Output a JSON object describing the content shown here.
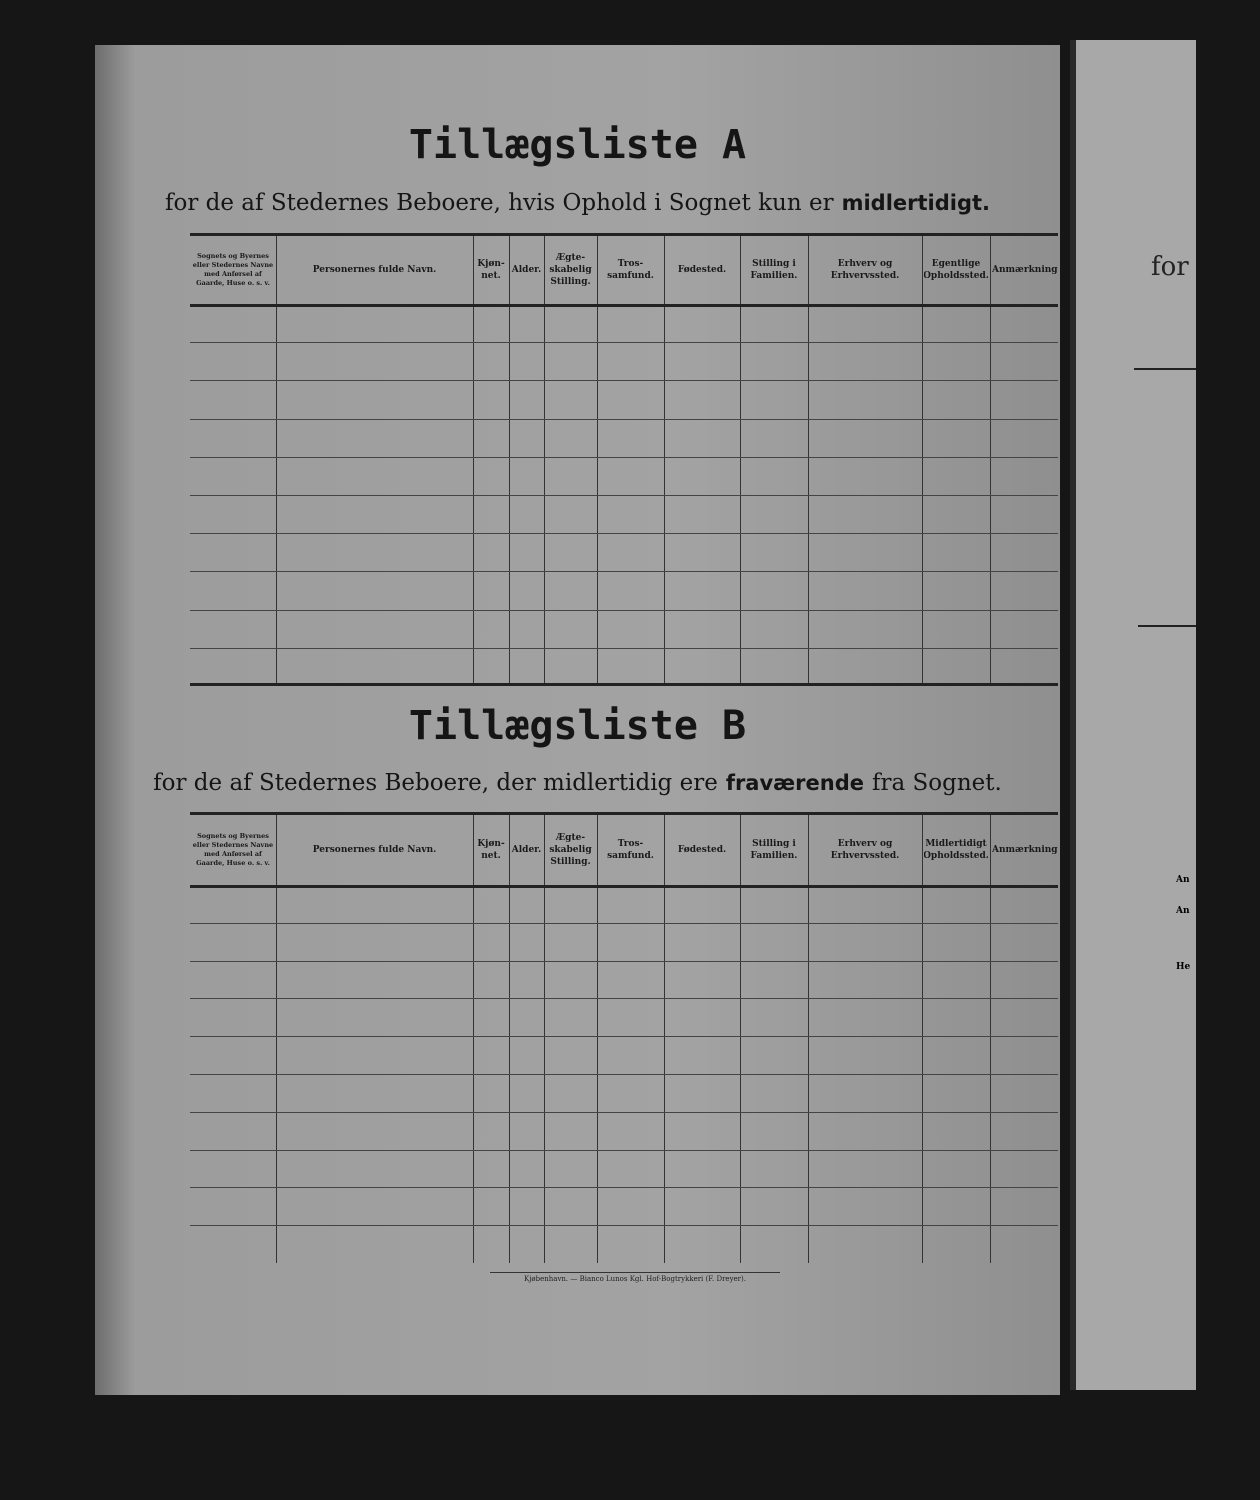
{
  "page": {
    "sections": [
      {
        "title": "Tillægsliste A",
        "subtitle": [
          {
            "text": "for de af Stedernes Beboere, hvis Ophold i Sognet kun er",
            "bold": false
          },
          {
            "text": "midlertidigt.",
            "bold": true
          }
        ],
        "headers": [
          "Sognets og Byernes eller Stedernes Navne med Anførsel af Gaarde, Huse o. s. v.",
          "Personernes fulde Navn.",
          "Kjøn-net.",
          "Alder.",
          "Ægte-skabelig Stilling.",
          "Tros-samfund.",
          "Fødested.",
          "Stilling i Familien.",
          "Erhverv og Erhvervssted.",
          "Egentlige Opholdssted.",
          "Anmærkninger"
        ]
      },
      {
        "title": "Tillægsliste B",
        "subtitle": [
          {
            "text": "for de af Stedernes Beboere, der midlertidig ere",
            "bold": false
          },
          {
            "text": "fraværende",
            "bold": true
          },
          {
            "text": "fra Sognet.",
            "bold": false
          }
        ],
        "headers": [
          "Sognets og Byernes eller Stedernes Navne med Anførsel af Gaarde, Huse o. s. v.",
          "Personernes fulde Navn.",
          "Kjøn-net.",
          "Alder.",
          "Ægte-skabelig Stilling.",
          "Tros-samfund.",
          "Fødested.",
          "Stilling i Familien.",
          "Erhverv og Erhvervssted.",
          "Midlertidigt Opholdssted.",
          "Anmærkninger"
        ]
      }
    ],
    "footer": "Kjøbenhavn. — Bianco Lunos Kgl. Hof-Bogtrykkeri (F. Dreyer).",
    "right_page": {
      "heading": "for",
      "notes": [
        "An",
        "An",
        "He"
      ]
    }
  }
}
